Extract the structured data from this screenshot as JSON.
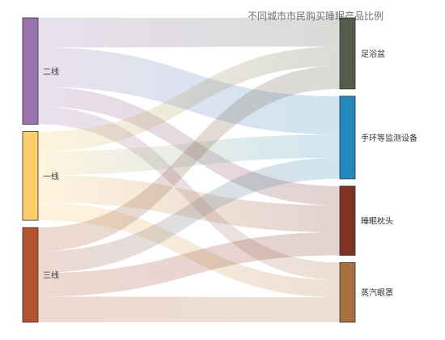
{
  "chart_data": {
    "type": "sankey",
    "title": "不同城市市民购买睡眠产品比例",
    "sources": [
      {
        "name": "二线",
        "color": "#9b72b0"
      },
      {
        "name": "一线",
        "color": "#fccf6b"
      },
      {
        "name": "三线",
        "color": "#b3532f"
      }
    ],
    "targets": [
      {
        "name": "足浴盆",
        "color": "#535d4a"
      },
      {
        "name": "手环等监测设备",
        "color": "#2289bd"
      },
      {
        "name": "睡眠枕头",
        "color": "#7f3226"
      },
      {
        "name": "蒸汽眼罩",
        "color": "#a8723e"
      }
    ],
    "links": [
      {
        "source": "二线",
        "target": "足浴盆",
        "value": 15
      },
      {
        "source": "二线",
        "target": "手环等监测设备",
        "value": 20
      },
      {
        "source": "二线",
        "target": "睡眠枕头",
        "value": 10
      },
      {
        "source": "二线",
        "target": "蒸汽眼罩",
        "value": 9
      },
      {
        "source": "一线",
        "target": "足浴盆",
        "value": 10
      },
      {
        "source": "一线",
        "target": "手环等监测设备",
        "value": 12
      },
      {
        "source": "一线",
        "target": "睡眠枕头",
        "value": 14
      },
      {
        "source": "一线",
        "target": "蒸汽眼罩",
        "value": 9
      },
      {
        "source": "三线",
        "target": "足浴盆",
        "value": 12
      },
      {
        "source": "三线",
        "target": "手环等监测设备",
        "value": 11
      },
      {
        "source": "三线",
        "target": "睡眠枕头",
        "value": 12
      },
      {
        "source": "三线",
        "target": "蒸汽眼罩",
        "value": 13
      }
    ]
  }
}
